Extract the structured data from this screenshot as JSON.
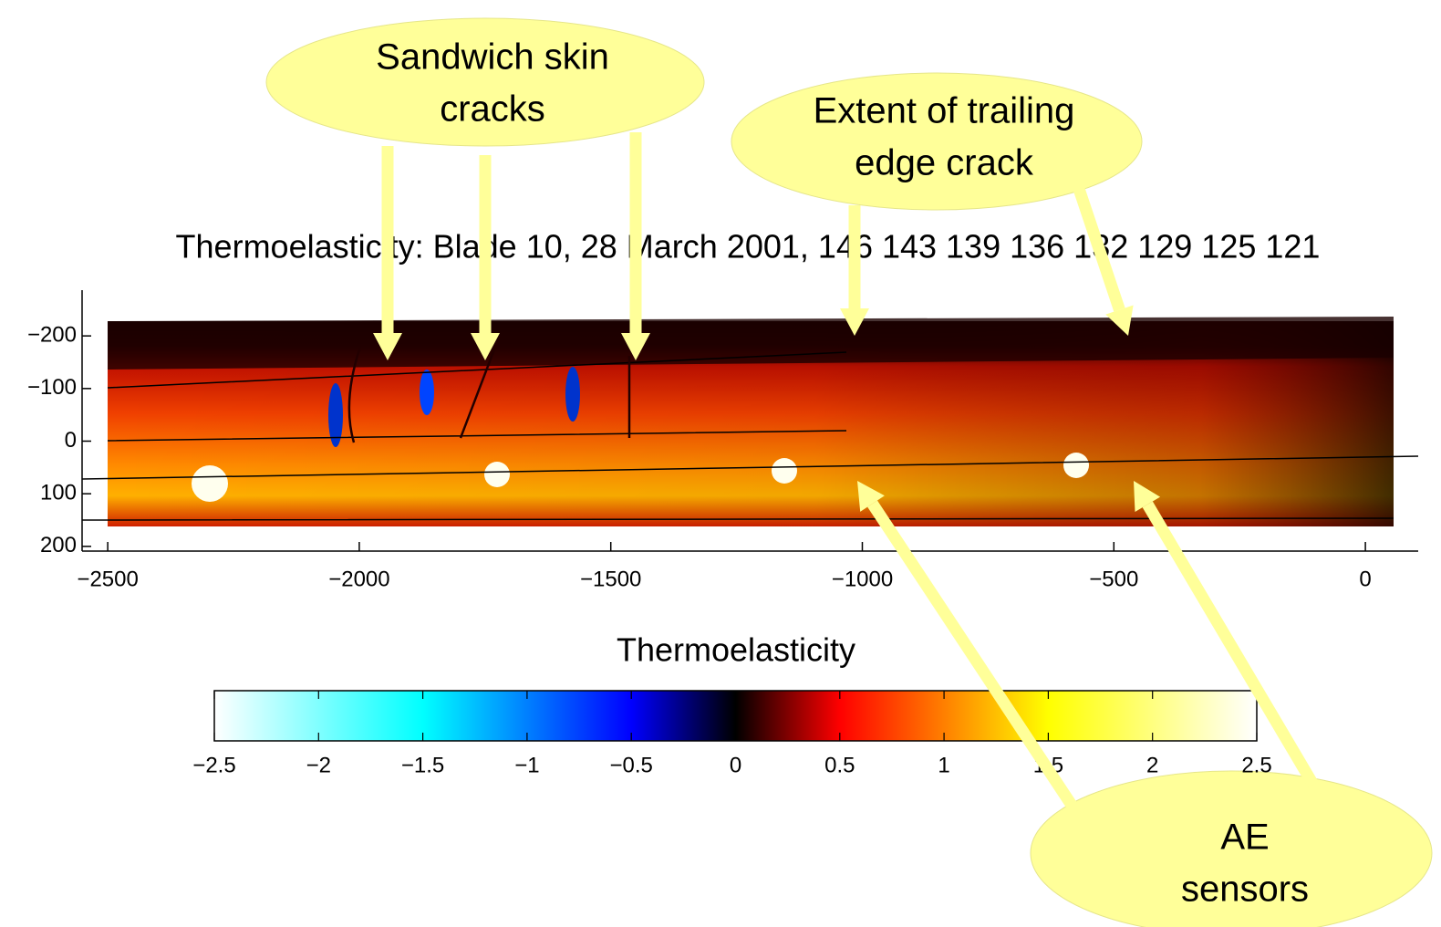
{
  "chart_data": {
    "type": "image",
    "title": "Thermoelasticity: Blade 10, 28 March 2001, 146 143 139 136 132 129 125 121",
    "xlim": [
      -2551,
      105
    ],
    "ylim": [
      -287,
      209
    ],
    "xticks": [
      {
        "value": -2500,
        "label": "−2500"
      },
      {
        "value": -2000,
        "label": "−2000"
      },
      {
        "value": -1500,
        "label": "−1500"
      },
      {
        "value": -1000,
        "label": "−1000"
      },
      {
        "value": -500,
        "label": "−500"
      },
      0
    ],
    "yticks": [
      {
        "value": -200,
        "label": "−200"
      },
      {
        "value": -100,
        "label": "−100"
      },
      0,
      100,
      200
    ],
    "colorbar": {
      "label": "Thermoelasticity",
      "lim": [
        -2.5,
        2.5
      ],
      "ticks": [
        {
          "value": -2.5,
          "label": "−2.5"
        },
        {
          "value": -2,
          "label": "−2"
        },
        {
          "value": -1.5,
          "label": "−1.5"
        },
        {
          "value": -1,
          "label": "−1"
        },
        {
          "value": -0.5,
          "label": "−0.5"
        },
        0,
        0.5,
        1,
        1.5,
        2,
        2.5
      ]
    },
    "annotations": [
      {
        "lines": [
          "Sandwich skin",
          "cracks"
        ]
      },
      {
        "lines": [
          "Extent of trailing",
          "edge crack"
        ]
      },
      {
        "lines": [
          "AE",
          "sensors"
        ]
      }
    ]
  }
}
